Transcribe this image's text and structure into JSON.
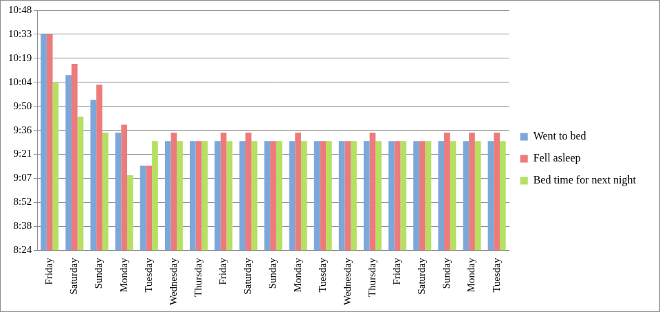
{
  "chart_data": {
    "type": "bar",
    "categories": [
      "Friday",
      "Saturday",
      "Sunday",
      "Monday",
      "Tuesday",
      "Wednesday",
      "Thursday",
      "Friday",
      "Saturday",
      "Sunday",
      "Monday",
      "Tuesday",
      "Wednesday",
      "Thursday",
      "Friday",
      "Saturday",
      "Sunday",
      "Monday",
      "Tuesday"
    ],
    "series": [
      {
        "name": "Went to bed",
        "color": "#7da7d9",
        "values": [
          0.44,
          0.423,
          0.4127,
          0.399,
          0.3853,
          0.3955,
          0.3955,
          0.3955,
          0.3955,
          0.3955,
          0.3955,
          0.3955,
          0.3955,
          0.3955,
          0.3955,
          0.3955,
          0.3955,
          0.3955,
          0.3955
        ]
      },
      {
        "name": "Fell asleep",
        "color": "#ee7b7b",
        "values": [
          0.44,
          0.4277,
          0.419,
          0.4023,
          0.3853,
          0.399,
          0.3955,
          0.399,
          0.399,
          0.3955,
          0.399,
          0.3955,
          0.3955,
          0.399,
          0.3955,
          0.3955,
          0.399,
          0.399,
          0.399
        ]
      },
      {
        "name": "Bed time for next night",
        "color": "#b5e061",
        "values": [
          0.4197,
          0.4057,
          0.399,
          0.3813,
          0.3955,
          0.3955,
          0.3955,
          0.3955,
          0.3955,
          0.3955,
          0.3955,
          0.3955,
          0.3955,
          0.3955,
          0.3955,
          0.3955,
          0.3955,
          0.3955,
          0.3955
        ]
      }
    ],
    "ylim": [
      0.35,
      0.45
    ],
    "yticks": [
      {
        "value": 0.35,
        "label": "8:24"
      },
      {
        "value": 0.36,
        "label": "8:38"
      },
      {
        "value": 0.37,
        "label": "8:52"
      },
      {
        "value": 0.38,
        "label": "9:07"
      },
      {
        "value": 0.39,
        "label": "9:21"
      },
      {
        "value": 0.4,
        "label": "9:36"
      },
      {
        "value": 0.41,
        "label": "9:50"
      },
      {
        "value": 0.42,
        "label": "10:04"
      },
      {
        "value": 0.43,
        "label": "10:19"
      },
      {
        "value": 0.44,
        "label": "10:33"
      },
      {
        "value": 0.45,
        "label": "10:48"
      }
    ],
    "grid": true,
    "legend": "right"
  }
}
